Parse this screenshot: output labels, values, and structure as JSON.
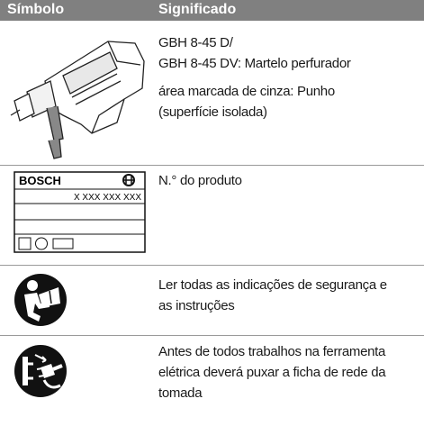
{
  "table": {
    "header": [
      "Símbolo",
      "Significado"
    ],
    "rows": [
      {
        "meaning": [
          "GBH 8-45 D/",
          "GBH 8-45 DV: Martelo perfurador",
          "área marcada de cinza: Punho",
          "(superfície isolada)"
        ]
      },
      {
        "symbol": [
          "BOSCH",
          "X XXX XXX XXX"
        ],
        "meaning": [
          "N.° do produto"
        ]
      },
      {
        "meaning": [
          "Ler todas as indicações de segurança e",
          "as instruções"
        ]
      },
      {
        "meaning": [
          "Antes de todos trabalhos na ferramenta",
          "elétrica deverá puxar a ficha de rede da",
          "tomada"
        ]
      }
    ]
  }
}
